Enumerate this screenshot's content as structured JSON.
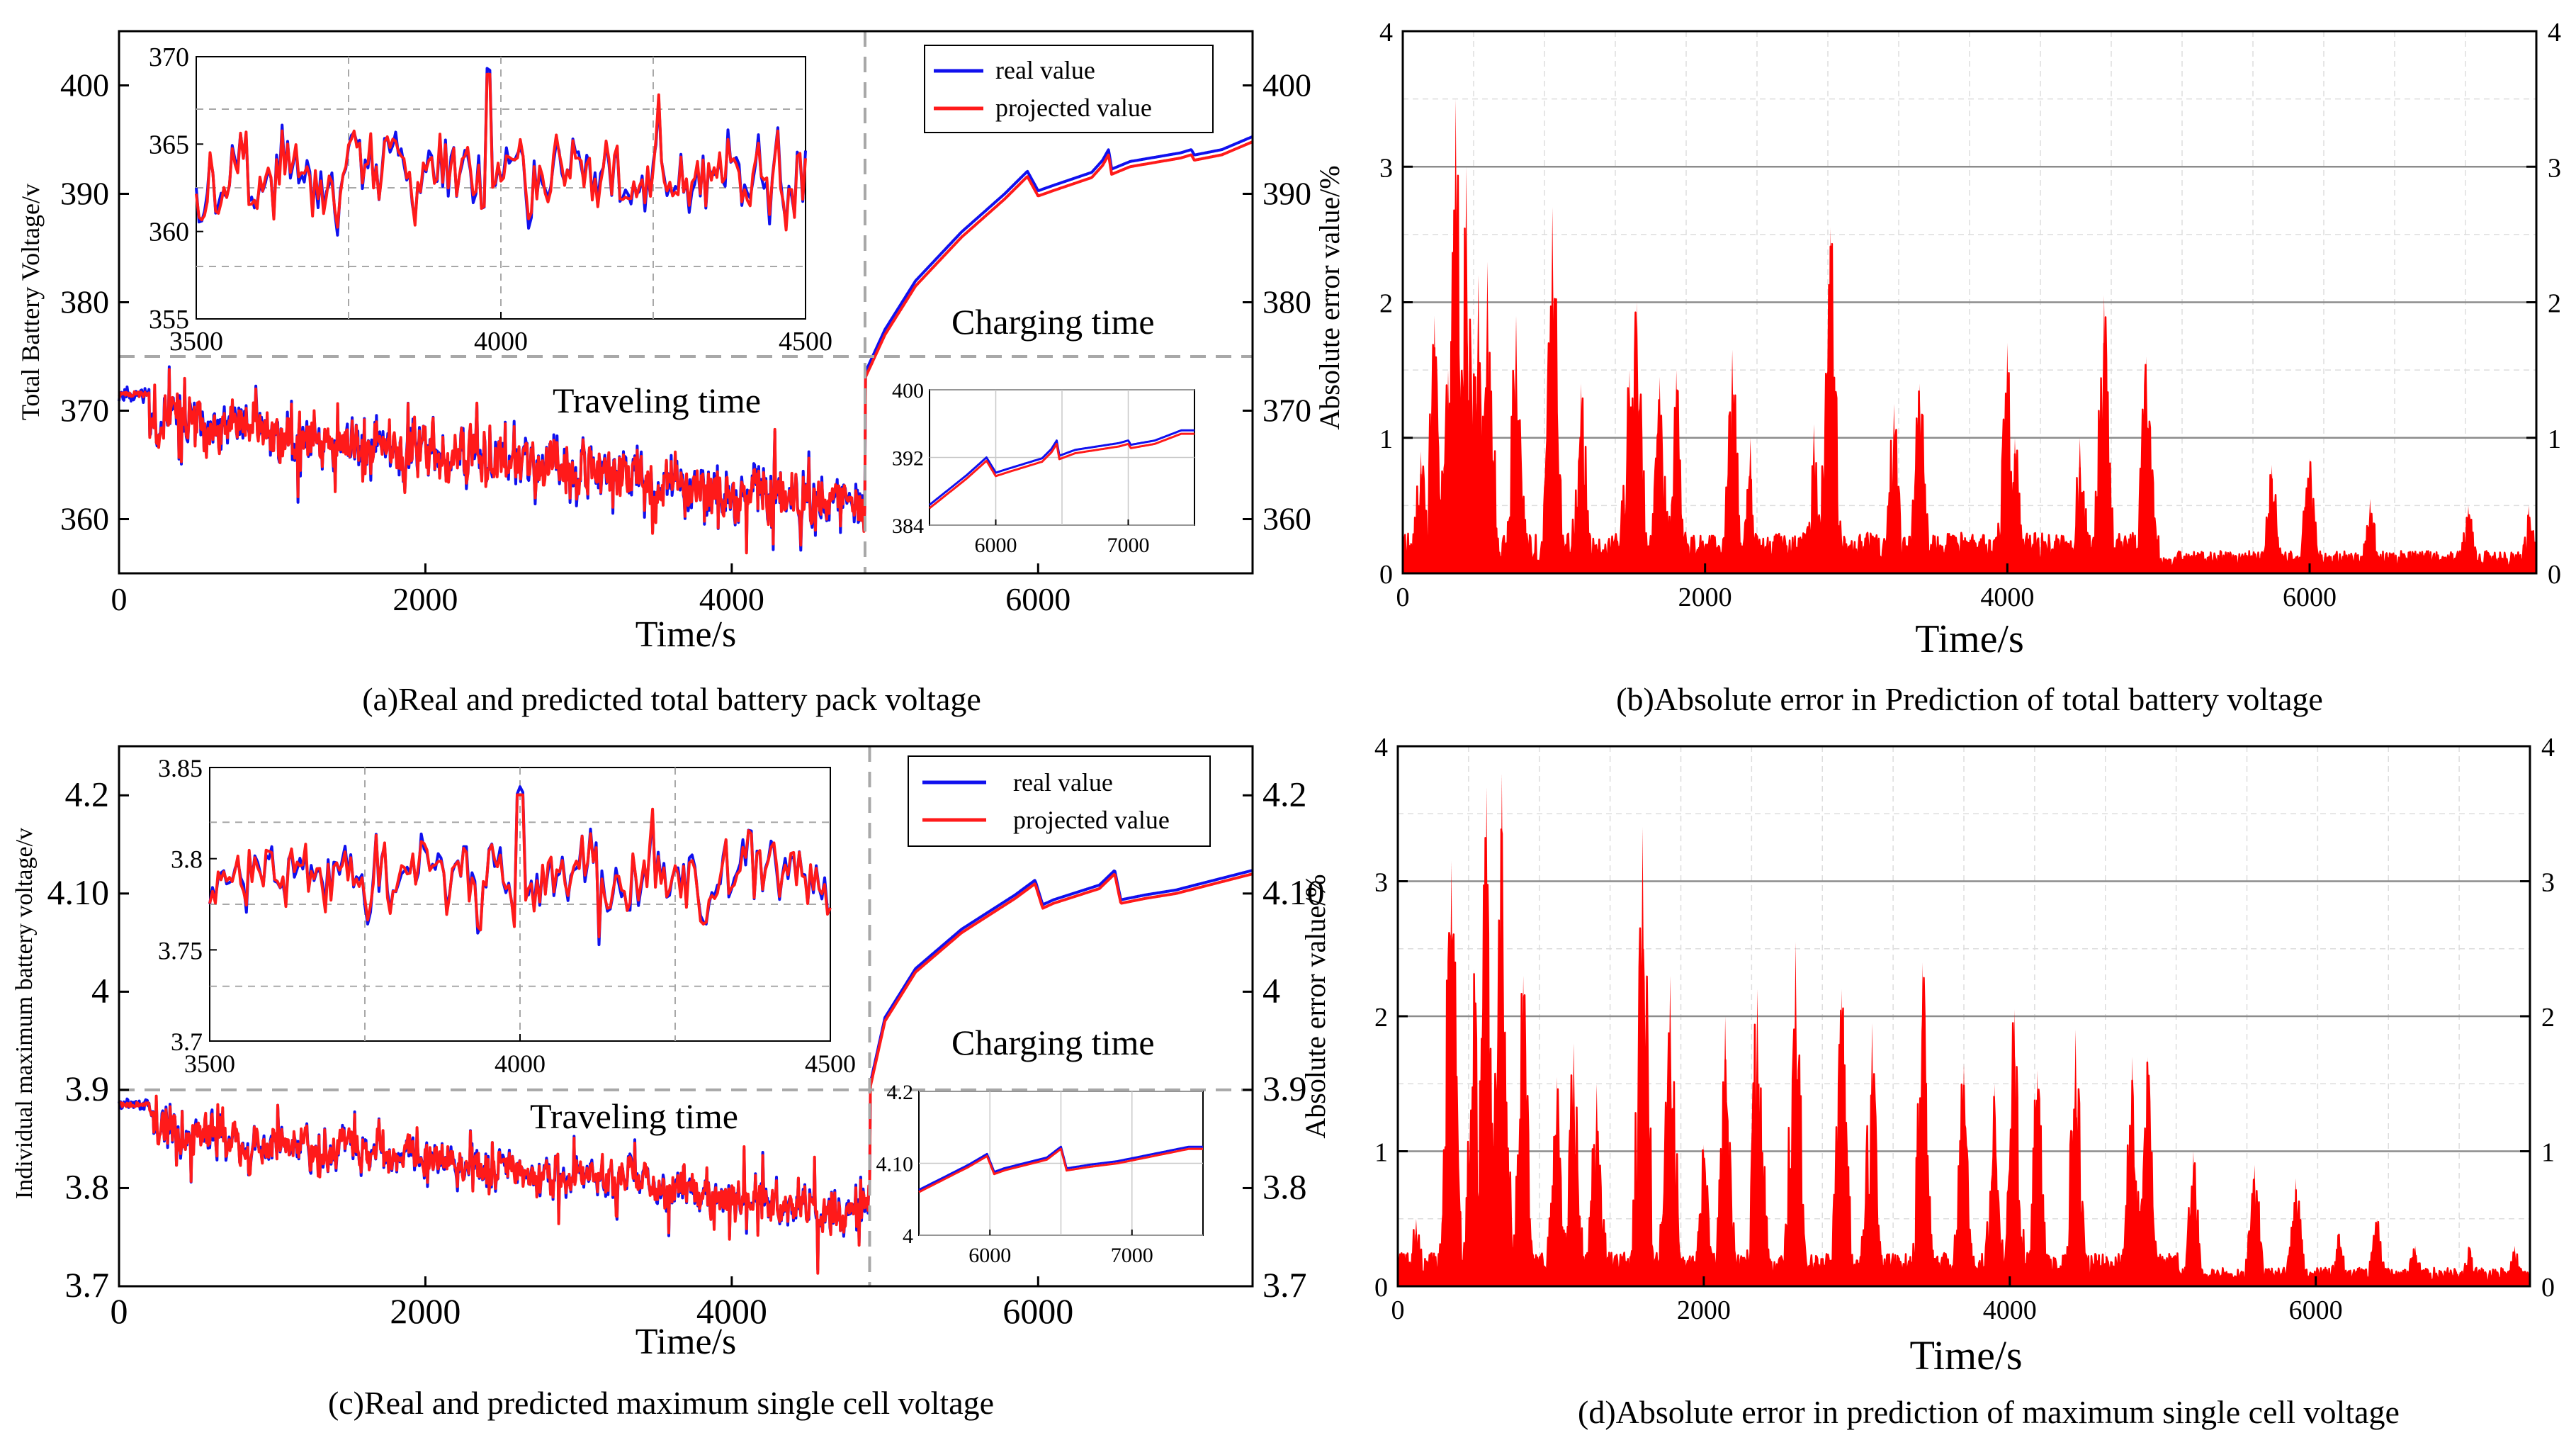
{
  "colors": {
    "real": "#1010ee",
    "pred": "#ff1a1a",
    "error": "#ff0000",
    "grid": "#c8c8c8",
    "dash": "#a8a8a8",
    "axis": "#000000"
  },
  "chart_data": [
    {
      "id": "a",
      "type": "line",
      "caption": "(a)Real and predicted total battery pack voltage",
      "xlabel": "Time/s",
      "ylabel": "Total Battery Voltage/v",
      "xlim": [
        0,
        7400
      ],
      "ylim": [
        355,
        405
      ],
      "xticks": [
        0,
        2000,
        4000,
        6000
      ],
      "yticks": [
        360,
        370,
        380,
        390,
        400
      ],
      "series": [
        {
          "name": "real value"
        },
        {
          "name": "projected value"
        }
      ],
      "legend": [
        "real value",
        "projected value"
      ],
      "legend_position": "top-right",
      "divider_x": 4870,
      "threshold_y": 375,
      "annotations": {
        "traveling": "Traveling time",
        "charging": "Charging time"
      },
      "profile": {
        "start": 371.5,
        "travel_end": 361,
        "jump_to": 373,
        "charge_points": [
          [
            4870,
            373
          ],
          [
            5000,
            377
          ],
          [
            5200,
            381.5
          ],
          [
            5500,
            386
          ],
          [
            5780,
            389.5
          ],
          [
            5930,
            391.6
          ],
          [
            6000,
            389.8
          ],
          [
            6100,
            390.3
          ],
          [
            6350,
            391.5
          ],
          [
            6420,
            392.6
          ],
          [
            6460,
            393.6
          ],
          [
            6480,
            391.8
          ],
          [
            6600,
            392.5
          ],
          [
            6930,
            393.3
          ],
          [
            7000,
            393.6
          ],
          [
            7020,
            393.1
          ],
          [
            7200,
            393.6
          ],
          [
            7400,
            394.8
          ]
        ],
        "noise": 2.6,
        "spikes": 4.5,
        "real_offset": 0.8,
        "inset_noise_amp": 2.2
      },
      "inset1": {
        "xlim": [
          3500,
          4500
        ],
        "ylim": [
          355,
          370
        ],
        "xticks": [
          3500,
          4000,
          4500
        ],
        "yticks": [
          355,
          360,
          365,
          370
        ],
        "base": 363,
        "amp": 2.2,
        "spike_x": 3980,
        "spike_y": 369
      },
      "inset2": {
        "xlim": [
          5500,
          7500
        ],
        "ylim": [
          384,
          400
        ],
        "xticks": [
          6000,
          7000
        ],
        "yticks": [
          384,
          392,
          400
        ]
      }
    },
    {
      "id": "b",
      "type": "area",
      "caption": "(b)Absolute error in Prediction of total battery voltage",
      "xlabel": "Time/s",
      "ylabel": "Absolute error value/%",
      "xlim": [
        0,
        7500
      ],
      "ylim": [
        0,
        4
      ],
      "xticks": [
        0,
        2000,
        4000,
        6000
      ],
      "yticks": [
        0,
        1,
        2,
        3,
        4
      ],
      "peaks": [
        [
          120,
          0.9
        ],
        [
          210,
          1.9
        ],
        [
          300,
          1.5
        ],
        [
          350,
          3.5
        ],
        [
          420,
          3.0
        ],
        [
          500,
          2.2
        ],
        [
          560,
          2.3
        ],
        [
          750,
          1.9
        ],
        [
          990,
          2.7
        ],
        [
          1180,
          1.4
        ],
        [
          1500,
          1.5
        ],
        [
          1550,
          2.0
        ],
        [
          1700,
          1.45
        ],
        [
          1810,
          1.5
        ],
        [
          2180,
          1.65
        ],
        [
          2300,
          1.0
        ],
        [
          2720,
          1.1
        ],
        [
          2830,
          2.55
        ],
        [
          3250,
          1.25
        ],
        [
          3420,
          1.4
        ],
        [
          4000,
          1.7
        ],
        [
          4050,
          1.0
        ],
        [
          4480,
          1.0
        ],
        [
          4640,
          2.05
        ],
        [
          4920,
          1.6
        ],
        [
          5750,
          0.8
        ],
        [
          6000,
          0.85
        ],
        [
          6400,
          0.55
        ],
        [
          7050,
          0.5
        ],
        [
          7450,
          0.5
        ]
      ],
      "base_level": 0.3,
      "quiet_after": 5000
    },
    {
      "id": "c",
      "type": "line",
      "caption": "(c)Real and predicted maximum single cell voltage",
      "xlabel": "Time/s",
      "ylabel": "Individual maximum battery voltage/v",
      "right_ylabel": "Absolute error value/%",
      "xlim": [
        0,
        7400
      ],
      "ylim": [
        3.7,
        4.25
      ],
      "xticks": [
        0,
        2000,
        4000,
        6000
      ],
      "yticks": [
        3.7,
        3.8,
        3.9,
        4.0,
        4.1,
        4.2
      ],
      "series": [
        {
          "name": "real value"
        },
        {
          "name": "projected value"
        }
      ],
      "legend": [
        "real value",
        "projected value"
      ],
      "legend_position": "top-right",
      "divider_x": 4900,
      "threshold_y": 3.9,
      "annotations": {
        "traveling": "Traveling time",
        "charging": "Charging time"
      },
      "profile": {
        "start": 3.885,
        "travel_end": 3.775,
        "jump_to": 3.9,
        "charge_points": [
          [
            4900,
            3.9
          ],
          [
            5000,
            3.97
          ],
          [
            5200,
            4.02
          ],
          [
            5500,
            4.06
          ],
          [
            5850,
            4.095
          ],
          [
            5980,
            4.11
          ],
          [
            6030,
            4.085
          ],
          [
            6100,
            4.09
          ],
          [
            6400,
            4.105
          ],
          [
            6500,
            4.12
          ],
          [
            6540,
            4.09
          ],
          [
            6700,
            4.095
          ],
          [
            6900,
            4.1
          ],
          [
            7400,
            4.12
          ]
        ],
        "noise": 0.022,
        "spikes": 0.04,
        "real_offset": 0.006,
        "inset_noise_amp": 0.018
      },
      "inset1": {
        "xlim": [
          3500,
          4500
        ],
        "ylim": [
          3.7,
          3.85
        ],
        "xticks": [
          3500,
          4000,
          4500
        ],
        "yticks": [
          3.7,
          3.75,
          3.8,
          3.85
        ],
        "base": 3.79,
        "amp": 0.018,
        "spike_x": 4000,
        "spike_y": 3.835
      },
      "inset2": {
        "xlim": [
          5500,
          7500
        ],
        "ylim": [
          4.0,
          4.2
        ],
        "xticks": [
          6000,
          7000
        ],
        "yticks": [
          4.0,
          4.1,
          4.2
        ]
      }
    },
    {
      "id": "d",
      "type": "area",
      "caption": "(d)Absolute error in prediction of maximum single cell voltage",
      "xlabel": "Time/s",
      "ylabel": "Absolute error value/%",
      "xlim": [
        0,
        7400
      ],
      "ylim": [
        0,
        4
      ],
      "xticks": [
        0,
        2000,
        4000,
        6000
      ],
      "yticks": [
        0,
        1,
        2,
        3,
        4
      ],
      "peaks": [
        [
          120,
          0.5
        ],
        [
          350,
          3.15
        ],
        [
          500,
          2.35
        ],
        [
          580,
          3.7
        ],
        [
          680,
          3.8
        ],
        [
          820,
          2.3
        ],
        [
          1040,
          1.55
        ],
        [
          1150,
          1.8
        ],
        [
          1300,
          1.5
        ],
        [
          1600,
          3.4
        ],
        [
          1780,
          2.3
        ],
        [
          2000,
          1.05
        ],
        [
          2140,
          2.0
        ],
        [
          2350,
          2.2
        ],
        [
          2600,
          2.55
        ],
        [
          2900,
          2.2
        ],
        [
          3100,
          1.95
        ],
        [
          3430,
          2.4
        ],
        [
          3700,
          1.65
        ],
        [
          3900,
          1.5
        ],
        [
          4030,
          2.05
        ],
        [
          4180,
          1.6
        ],
        [
          4430,
          1.9
        ],
        [
          4800,
          1.7
        ],
        [
          4900,
          1.7
        ],
        [
          5200,
          1.0
        ],
        [
          5600,
          0.9
        ],
        [
          5870,
          0.8
        ],
        [
          6150,
          0.4
        ],
        [
          6400,
          0.5
        ],
        [
          6650,
          0.3
        ],
        [
          7000,
          0.3
        ],
        [
          7300,
          0.3
        ]
      ],
      "base_level": 0.25,
      "quiet_after": 5100
    }
  ]
}
